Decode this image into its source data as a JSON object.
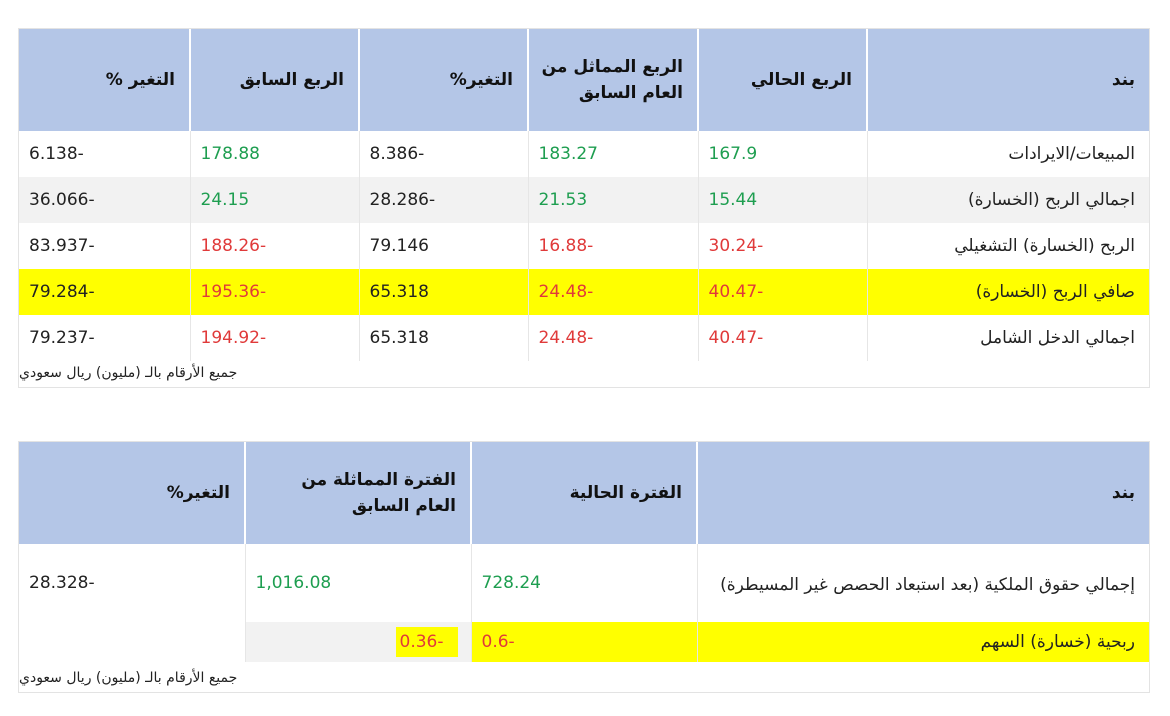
{
  "table1": {
    "headers": {
      "item": "بند",
      "current_quarter": "الربع الحالي",
      "same_quarter_last_year": "الربع المماثل من العام السابق",
      "change_pct_1": "التغير%",
      "previous_quarter": "الربع السابق",
      "change_pct_2": "التغير %"
    },
    "rows": [
      {
        "item": "المبيعات/الايرادات",
        "current": "167.9",
        "same_last_year": "183.27",
        "change1": "8.386-",
        "previous": "178.88",
        "change2": "6.138-"
      },
      {
        "item": "اجمالي الربح (الخسارة)",
        "current": "15.44",
        "same_last_year": "21.53",
        "change1": "28.286-",
        "previous": "24.15",
        "change2": "36.066-"
      },
      {
        "item": "الربح (الخسارة) التشغيلي",
        "current": "30.24-",
        "same_last_year": "16.88-",
        "change1": "79.146",
        "previous": "188.26-",
        "change2": "83.937-"
      },
      {
        "item": "صافي الربح (الخسارة)",
        "current": "40.47-",
        "same_last_year": "24.48-",
        "change1": "65.318",
        "previous": "195.36-",
        "change2": "79.284-"
      },
      {
        "item": "اجمالي الدخل الشامل",
        "current": "40.47-",
        "same_last_year": "24.48-",
        "change1": "65.318",
        "previous": "194.92-",
        "change2": "79.237-"
      }
    ],
    "note": "جميع الأرقام بالـ (مليون) ريال سعودي"
  },
  "table2": {
    "headers": {
      "item": "بند",
      "current_period": "الفترة الحالية",
      "same_period_last_year": "الفترة المماثلة من العام السابق",
      "change_pct": "التغير%"
    },
    "rows": [
      {
        "item": "إجمالي حقوق الملكية (بعد استبعاد الحصص غير المسيطرة)",
        "current": "728.24",
        "same_last_year": "1,016.08",
        "change": "28.328-"
      },
      {
        "item": "ربحية (خسارة) السهم",
        "current": "0.6-",
        "same_last_year": "0.36-",
        "change": ""
      }
    ],
    "note": "جميع الأرقام بالـ (مليون) ريال سعودي"
  },
  "colors": {
    "header_bg": "#b4c6e7",
    "highlight": "#ffff00",
    "positive": "#1e9e50",
    "negative": "#e03a3a",
    "alt_row": "#f2f2f2"
  }
}
